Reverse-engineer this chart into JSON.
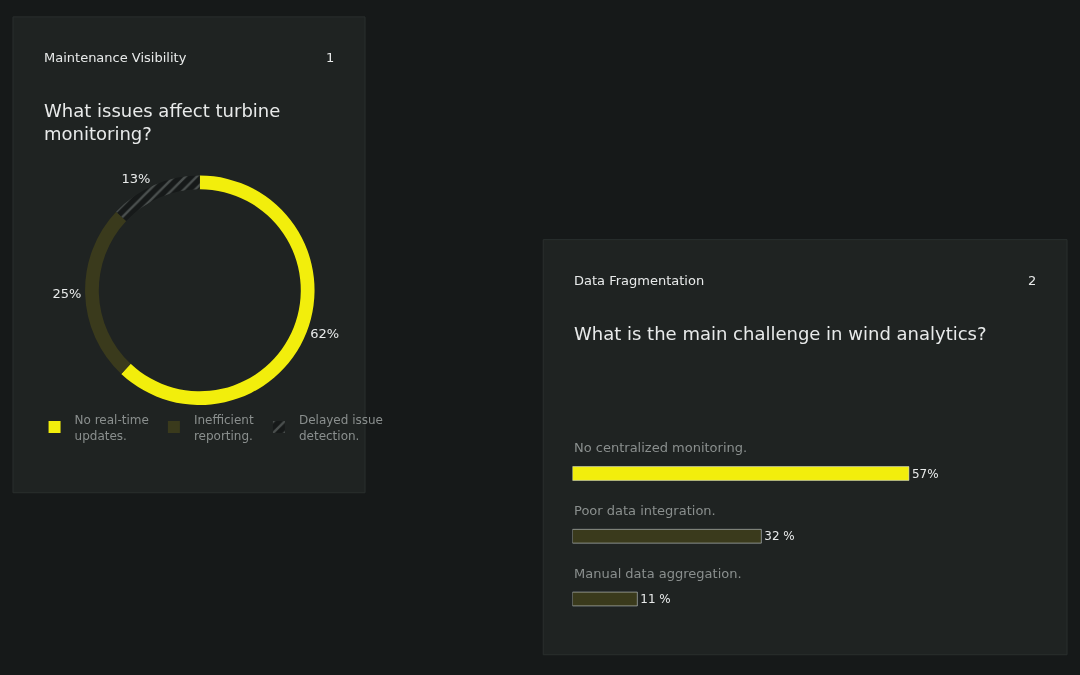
{
  "chart_data": [
    {
      "type": "donut",
      "subtitle": "Maintenance Visibility",
      "title": "What issues affect turbine monitoring?",
      "annotations": [
        "1"
      ],
      "categories": [
        "No real-time updates.",
        "Inefficient reporting.",
        "Delayed issue detection."
      ],
      "values": [
        62,
        25,
        13
      ],
      "colors": [
        "#f2ee0c",
        "#3a3a1c",
        "#2c302f"
      ],
      "value_labels": [
        "62%",
        "25%",
        "13%"
      ],
      "legend": "bottom"
    },
    {
      "type": "bar",
      "orientation": "horizontal",
      "subtitle": "Data Fragmentation",
      "title": "What is the main challenge in wind analytics?",
      "annotations": [
        "2"
      ],
      "categories": [
        "No centralized monitoring.",
        "Poor data integration.",
        "Manual data aggregation."
      ],
      "values": [
        57,
        32,
        11
      ],
      "colors": [
        "#f2ee0c",
        "#3a3a1c",
        "#3a3a1c"
      ],
      "value_labels": [
        "57%",
        "32 %",
        "11 %"
      ],
      "tick_labels": "y"
    }
  ]
}
